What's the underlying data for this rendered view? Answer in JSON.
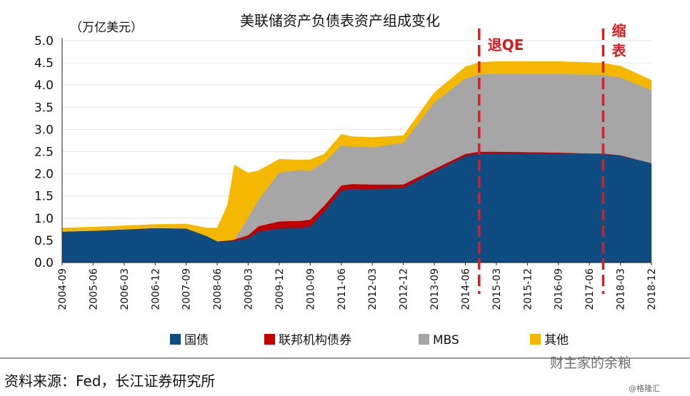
{
  "chart_data": {
    "type": "area",
    "stacked": true,
    "title": "美联储资产负债表资产组成变化",
    "unit_label": "（万亿美元）",
    "ylim": [
      0,
      5.0
    ],
    "yticks": [
      "0.0",
      "0.5",
      "1.0",
      "1.5",
      "2.0",
      "2.5",
      "3.0",
      "3.5",
      "4.0",
      "4.5",
      "5.0"
    ],
    "x_tick_labels": [
      "2004-09",
      "2005-06",
      "2006-03",
      "2006-12",
      "2007-09",
      "2008-06",
      "2009-03",
      "2009-12",
      "2010-09",
      "2011-06",
      "2012-03",
      "2012-12",
      "2013-09",
      "2014-06",
      "2015-03",
      "2015-12",
      "2016-09",
      "2017-06",
      "2018-03",
      "2018-12"
    ],
    "x": [
      "2004-09",
      "2005-06",
      "2006-03",
      "2006-12",
      "2007-09",
      "2008-03",
      "2008-06",
      "2008-09",
      "2008-11",
      "2009-03",
      "2009-06",
      "2009-12",
      "2010-06",
      "2010-09",
      "2011-01",
      "2011-06",
      "2011-09",
      "2012-03",
      "2012-12",
      "2013-09",
      "2014-06",
      "2014-10",
      "2015-03",
      "2015-12",
      "2016-09",
      "2017-06",
      "2017-10",
      "2018-03",
      "2018-12"
    ],
    "series": [
      {
        "name": "国债",
        "color": "#0f4c81",
        "values": [
          0.7,
          0.72,
          0.75,
          0.78,
          0.77,
          0.6,
          0.48,
          0.48,
          0.49,
          0.55,
          0.7,
          0.77,
          0.78,
          0.82,
          1.15,
          1.62,
          1.66,
          1.66,
          1.68,
          2.05,
          2.4,
          2.46,
          2.46,
          2.46,
          2.46,
          2.45,
          2.45,
          2.41,
          2.24
        ]
      },
      {
        "name": "联邦机构债券",
        "color": "#c00000",
        "values": [
          0.0,
          0.0,
          0.0,
          0.0,
          0.0,
          0.0,
          0.0,
          0.02,
          0.03,
          0.07,
          0.12,
          0.16,
          0.16,
          0.15,
          0.13,
          0.12,
          0.11,
          0.1,
          0.08,
          0.06,
          0.05,
          0.04,
          0.04,
          0.03,
          0.02,
          0.01,
          0.01,
          0.01,
          0.0
        ]
      },
      {
        "name": "MBS",
        "color": "#a6a6a6",
        "values": [
          0.0,
          0.0,
          0.0,
          0.0,
          0.0,
          0.0,
          0.0,
          0.0,
          0.0,
          0.4,
          0.6,
          1.1,
          1.15,
          1.1,
          0.98,
          0.9,
          0.85,
          0.84,
          0.94,
          1.5,
          1.7,
          1.74,
          1.76,
          1.76,
          1.77,
          1.78,
          1.77,
          1.75,
          1.65
        ]
      },
      {
        "name": "其他",
        "color": "#f5b800",
        "values": [
          0.08,
          0.08,
          0.08,
          0.08,
          0.1,
          0.18,
          0.3,
          0.8,
          1.68,
          1.0,
          0.65,
          0.3,
          0.22,
          0.25,
          0.18,
          0.25,
          0.22,
          0.22,
          0.16,
          0.22,
          0.26,
          0.27,
          0.27,
          0.28,
          0.28,
          0.27,
          0.26,
          0.26,
          0.22
        ]
      }
    ],
    "legend_position": "bottom",
    "annotations": [
      {
        "text": "退QE",
        "x": "2014-10"
      },
      {
        "text": "缩表",
        "x": "2017-10"
      }
    ]
  },
  "source": "资料来源：Fed，长江证券研究所",
  "watermark": "财主家的余粮",
  "watermark_small": "@格隆汇"
}
